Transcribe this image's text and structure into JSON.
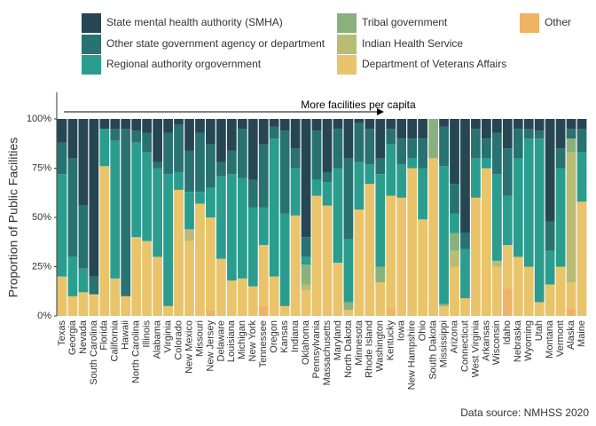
{
  "chart_data": {
    "type": "stacked_bar",
    "y_label": "Proportion of Public Facilities",
    "annotation": "More facilities per capita",
    "source": "Data source: NMHSS 2020",
    "categories": [
      "Texas",
      "Georgia",
      "Nevada",
      "South Carolina",
      "Florida",
      "California",
      "Hawaii",
      "North Carolina",
      "Illinois",
      "Alabama",
      "Virginia",
      "Colorado",
      "New Mexico",
      "Missouri",
      "New Jersey",
      "Delaware",
      "Louisiana",
      "Michigan",
      "New York",
      "Tennessee",
      "Oregon",
      "Kansas",
      "Indiana",
      "Oklahoma",
      "Pennsylvania",
      "Massachusetts",
      "Maryland",
      "North Dakota",
      "Minnesota",
      "Rhode Island",
      "Washington",
      "Kentucky",
      "Iowa",
      "New Hampshire",
      "Ohio",
      "South Dakota",
      "Mississippi",
      "Arizona",
      "Connecticut",
      "West Virginia",
      "Arkansas",
      "Wisconsin",
      "Idaho",
      "Nebraska",
      "Wyoming",
      "Utah",
      "Montana",
      "Vermont",
      "Alaska",
      "Maine"
    ],
    "series": [
      {
        "name": "State mental health authority (SMHA)",
        "color": "#264653",
        "values": [
          12,
          20,
          44,
          80,
          5,
          5,
          5,
          6,
          7,
          22,
          7,
          3,
          16,
          7,
          13,
          22,
          16,
          5,
          31,
          13,
          4,
          6,
          15,
          60,
          6,
          27,
          5,
          20,
          2,
          5,
          20,
          5,
          10,
          10,
          10,
          0,
          4,
          33,
          58,
          5,
          10,
          7,
          15,
          5,
          5,
          6,
          52,
          15,
          5,
          5
        ]
      },
      {
        "name": "Other state government agency or department",
        "color": "#287271",
        "values": [
          16,
          50,
          32,
          9,
          0,
          6,
          85,
          6,
          10,
          3,
          21,
          24,
          21,
          30,
          22,
          7,
          12,
          25,
          14,
          32,
          6,
          42,
          10,
          10,
          25,
          5,
          20,
          41,
          20,
          18,
          8,
          8,
          13,
          10,
          15,
          0,
          20,
          15,
          8,
          15,
          10,
          21,
          24,
          15,
          5,
          4,
          15,
          10,
          5,
          12
        ]
      },
      {
        "name": "Regional authority orgovernment",
        "color": "#2a9d8f",
        "values": [
          52,
          20,
          12,
          0,
          19,
          70,
          0,
          48,
          45,
          45,
          67,
          9,
          19,
          6,
          15,
          42,
          54,
          51,
          40,
          19,
          70,
          47,
          24,
          4,
          8,
          12,
          48,
          32,
          24,
          10,
          47,
          26,
          17,
          5,
          26,
          0,
          70,
          10,
          25,
          20,
          5,
          44,
          25,
          50,
          65,
          83,
          17,
          50,
          0,
          25
        ]
      },
      {
        "name": "Tribal government",
        "color": "#8ab17d",
        "values": [
          0,
          0,
          0,
          0,
          0,
          0,
          0,
          0,
          0,
          0,
          0,
          0,
          0,
          0,
          0,
          0,
          0,
          0,
          0,
          0,
          0,
          0,
          0,
          10,
          0,
          0,
          0,
          4,
          0,
          0,
          8,
          0,
          0,
          0,
          0,
          20,
          1,
          9,
          0,
          0,
          0,
          0,
          0,
          0,
          0,
          0,
          0,
          0,
          7,
          0
        ]
      },
      {
        "name": "Indian Health Service",
        "color": "#babb74",
        "values": [
          0,
          0,
          0,
          0,
          0,
          0,
          0,
          0,
          0,
          0,
          0,
          0,
          6,
          0,
          0,
          0,
          0,
          0,
          0,
          0,
          0,
          0,
          0,
          3,
          0,
          0,
          0,
          0,
          0,
          0,
          0,
          0,
          0,
          0,
          0,
          0,
          0,
          8,
          0,
          0,
          0,
          3,
          0,
          0,
          0,
          0,
          0,
          0,
          66,
          0
        ]
      },
      {
        "name": "Department of Veterans Affairs",
        "color": "#e9c46a",
        "values": [
          20,
          10,
          12,
          11,
          76,
          19,
          10,
          40,
          38,
          30,
          5,
          64,
          38,
          57,
          47,
          29,
          18,
          19,
          15,
          31,
          20,
          5,
          51,
          13,
          61,
          56,
          27,
          3,
          54,
          67,
          17,
          57,
          60,
          75,
          49,
          80,
          5,
          25,
          9,
          60,
          75,
          25,
          22,
          30,
          25,
          7,
          16,
          25,
          13,
          58
        ]
      },
      {
        "name": "Other",
        "color": "#efb366",
        "values": [
          0,
          0,
          0,
          0,
          0,
          0,
          0,
          0,
          0,
          0,
          0,
          0,
          0,
          0,
          3,
          0,
          0,
          0,
          0,
          5,
          0,
          0,
          0,
          0,
          0,
          0,
          0,
          0,
          0,
          0,
          0,
          4,
          0,
          0,
          0,
          0,
          0,
          0,
          0,
          0,
          0,
          0,
          14,
          0,
          0,
          0,
          0,
          0,
          4,
          0
        ]
      }
    ],
    "ylim": [
      0,
      100
    ],
    "yticks": [
      {
        "value": 0,
        "label": "0%"
      },
      {
        "value": 25,
        "label": "25%"
      },
      {
        "value": 50,
        "label": "50%"
      },
      {
        "value": 75,
        "label": "75%"
      },
      {
        "value": 100,
        "label": "100%"
      }
    ]
  }
}
